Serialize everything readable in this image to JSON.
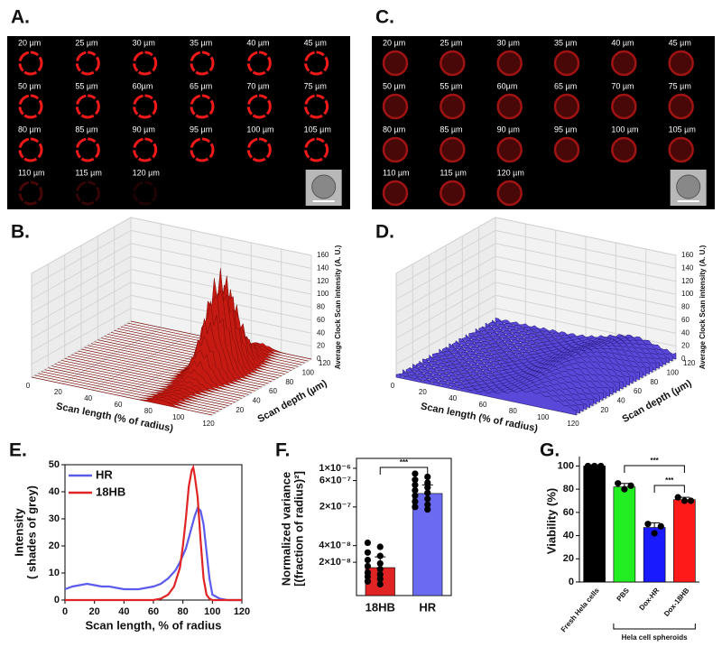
{
  "panels": {
    "A": {
      "label": "A.",
      "depths": [
        "20 µm",
        "25 µm",
        "30 µm",
        "35 µm",
        "40 µm",
        "45 µm",
        "50 µm",
        "55 µm",
        "60µm",
        "65 µm",
        "70 µm",
        "75 µm",
        "80 µm",
        "85 µm",
        "90 µm",
        "95 µm",
        "100 µm",
        "105 µm",
        "110 µm",
        "115 µm",
        "120 µm"
      ]
    },
    "C": {
      "label": "C.",
      "depths": [
        "20 µm",
        "25 µm",
        "30 µm",
        "35 µm",
        "40 µm",
        "45 µm",
        "50 µm",
        "55 µm",
        "60µm",
        "65 µm",
        "70 µm",
        "75 µm",
        "80 µm",
        "85 µm",
        "90 µm",
        "95 µm",
        "100 µm",
        "105 µm",
        "110 µm",
        "115 µm",
        "120 µm"
      ]
    },
    "B": {
      "label": "B.",
      "xlabel": "Scan length (% of radius)",
      "ylabel": "Scan depth (µm)",
      "zlabel": "Average Clock Scan intensity (A. U.)",
      "xticks": [
        0,
        20,
        40,
        60,
        80,
        100,
        120
      ],
      "yticks": [
        20,
        40,
        60,
        80,
        100,
        120
      ],
      "zticks": [
        0,
        20,
        40,
        60,
        80,
        100,
        120,
        140,
        160
      ]
    },
    "D": {
      "label": "D.",
      "xlabel": "Scan length (% of radius)",
      "ylabel": "Scan depth (µm)",
      "zlabel": "Average Clock Scan intensity (A. U.)",
      "xticks": [
        0,
        20,
        40,
        60,
        80,
        100,
        120
      ],
      "yticks": [
        20,
        40,
        60,
        80,
        100,
        120
      ],
      "zticks": [
        0,
        20,
        40,
        60,
        80,
        100,
        120,
        140,
        160
      ]
    }
  },
  "chart_data": [
    {
      "type": "line",
      "label": "E.",
      "xlabel": "Scan length, % of radius",
      "ylabel": [
        "Intensity",
        "( shades of grey)"
      ],
      "xlim": [
        0,
        120
      ],
      "ylim": [
        0,
        50
      ],
      "xticks": [
        0,
        20,
        40,
        60,
        80,
        100,
        120
      ],
      "yticks": [
        0,
        10,
        20,
        30,
        40,
        50
      ],
      "legend": "upper left",
      "series": [
        {
          "name": "HR",
          "color": "#5b5bec",
          "x": [
            0,
            5,
            10,
            15,
            20,
            25,
            30,
            35,
            40,
            45,
            50,
            55,
            60,
            65,
            70,
            75,
            78,
            82,
            85,
            88,
            90,
            92,
            94,
            96,
            98,
            100,
            105,
            110,
            120
          ],
          "values": [
            4,
            5,
            5.5,
            6,
            5.5,
            5,
            5,
            4.5,
            4,
            4,
            4,
            4.5,
            5,
            6,
            8,
            11,
            14,
            19,
            25,
            31,
            34,
            33,
            28,
            18,
            8,
            2,
            0.5,
            0,
            0
          ]
        },
        {
          "name": "18HB",
          "color": "#e02424",
          "x": [
            0,
            20,
            40,
            60,
            65,
            70,
            74,
            78,
            80,
            82,
            84,
            86,
            87,
            88,
            90,
            92,
            94,
            96,
            98,
            100,
            120
          ],
          "values": [
            0,
            0,
            0,
            0,
            0.5,
            2,
            5,
            12,
            20,
            30,
            42,
            48,
            49,
            46,
            38,
            22,
            8,
            2,
            0.5,
            0,
            0
          ]
        }
      ]
    },
    {
      "type": "bar",
      "label": "F.",
      "ylabel": [
        "Normalized variance",
        "[(fraction of radius)²]"
      ],
      "log_scale": true,
      "ylim": [
        5e-09,
        1.3e-06
      ],
      "yticks": [
        {
          "value": 1e-06,
          "label": "1×10⁻⁶"
        },
        {
          "value": 6e-07,
          "label": "6×10⁻⁷"
        },
        {
          "value": 2e-07,
          "label": "2×10⁻⁷"
        },
        {
          "value": 4e-08,
          "label": "4×10⁻⁸"
        },
        {
          "value": 2e-08,
          "label": "2×10⁻⁸"
        }
      ],
      "categories": [
        "18HB",
        "HR"
      ],
      "values": [
        1.6e-08,
        3.5e-07
      ],
      "errors": [
        9e-09,
        1.5e-07
      ],
      "colors": [
        "#e02424",
        "#6b6bf2"
      ],
      "points": [
        [
          4.5e-08,
          3.8e-08,
          3e-08,
          2.6e-08,
          2.2e-08,
          1.9e-08,
          1.7e-08,
          1.5e-08,
          1.3e-08,
          1.2e-08,
          1.1e-08,
          1e-08,
          9e-09,
          8e-09
        ],
        [
          8e-07,
          7e-07,
          6.2e-07,
          5.5e-07,
          5e-07,
          4.5e-07,
          4e-07,
          3.6e-07,
          3.2e-07,
          2.8e-07,
          2.5e-07,
          2.2e-07,
          2e-07,
          1.8e-07
        ]
      ],
      "significance": [
        {
          "label": "***",
          "from": "18HB",
          "to": "HR"
        }
      ]
    },
    {
      "type": "bar",
      "label": "G.",
      "ylabel": [
        "Viability (%)"
      ],
      "ylim": [
        0,
        105
      ],
      "yticks": [
        0,
        20,
        40,
        60,
        80,
        100
      ],
      "categories": [
        "Fresh Hela cells",
        "PBS",
        "Dox-HR",
        "Dox-18HB"
      ],
      "values": [
        100,
        82,
        47,
        71
      ],
      "errors": [
        1,
        3,
        4,
        2
      ],
      "colors": [
        "#000000",
        "#22ee22",
        "#1a1aff",
        "#ff1a1a"
      ],
      "points": [
        [
          100,
          100,
          100
        ],
        [
          85,
          80,
          83
        ],
        [
          50,
          42,
          48
        ],
        [
          73,
          70,
          70
        ]
      ],
      "group_label": {
        "label": "Hela cell spheroids",
        "from": "PBS",
        "to": "Dox-18HB"
      },
      "significance": [
        {
          "label": "***",
          "from": "PBS",
          "to": "Dox-18HB"
        },
        {
          "label": "***",
          "from": "Dox-HR",
          "to": "Dox-18HB"
        }
      ]
    }
  ]
}
